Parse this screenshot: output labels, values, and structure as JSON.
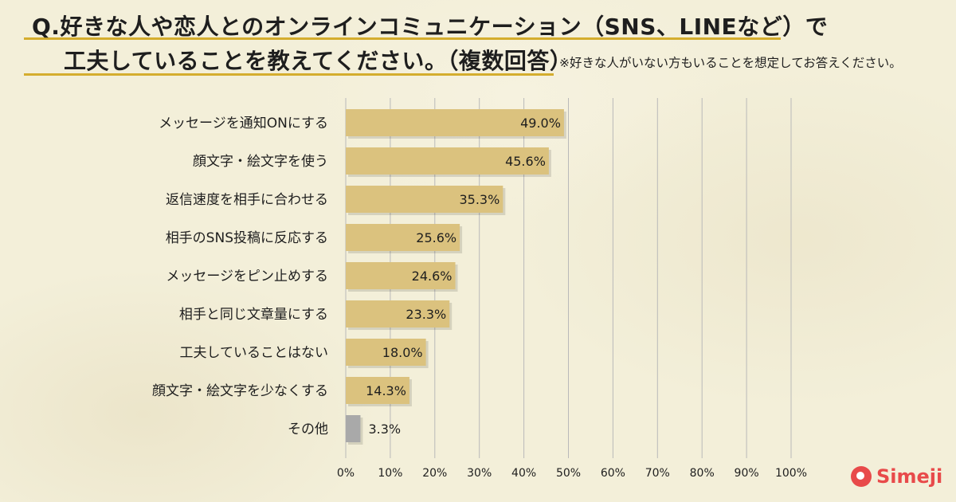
{
  "title": {
    "line1": "Q.好きな人や恋人とのオンラインコミュニケーション（SNS、LINEなど）で",
    "line2": "工夫していることを教えてください。（複数回答）",
    "note": "※好きな人がいない方もいることを想定してお答えください。"
  },
  "logo": {
    "text": "Simeji",
    "icon": "chat-bubble-icon"
  },
  "colors": {
    "bar": "#dbc27e",
    "bar_other": "#a9a9a9",
    "grid": "#b9b9b9",
    "title_underline": "#d4ad2e",
    "logo": "#e84a4a"
  },
  "chart_data": {
    "type": "bar",
    "orientation": "horizontal",
    "categories": [
      "メッセージを通知ONにする",
      "顔文字・絵文字を使う",
      "返信速度を相手に合わせる",
      "相手のSNS投稿に反応する",
      "メッセージをピン止めする",
      "相手と同じ文章量にする",
      "工夫していることはない",
      "顔文字・絵文字を少なくする",
      "その他"
    ],
    "values": [
      49.0,
      45.6,
      35.3,
      25.6,
      24.6,
      23.3,
      18.0,
      14.3,
      3.3
    ],
    "value_labels": [
      "49.0%",
      "45.6%",
      "35.3%",
      "25.6%",
      "24.6%",
      "23.3%",
      "18.0%",
      "14.3%",
      "3.3%"
    ],
    "xlim": [
      0,
      100
    ],
    "xticks": [
      "0%",
      "10%",
      "20%",
      "30%",
      "40%",
      "50%",
      "60%",
      "70%",
      "80%",
      "90%",
      "100%"
    ],
    "grid": true,
    "legend": "none"
  }
}
